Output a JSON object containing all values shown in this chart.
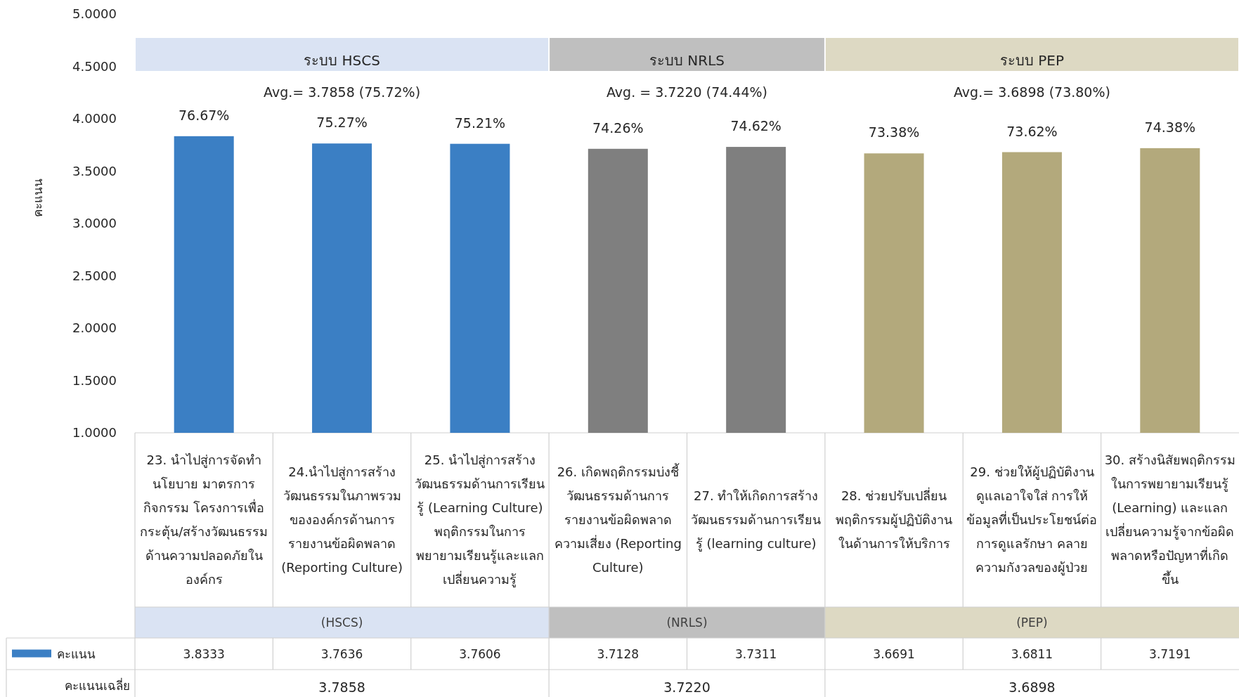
{
  "chart_data": {
    "type": "bar",
    "ylabel": "คะแนน",
    "categories": [
      "23. นำไปสู่การจัดทำนโยบาย มาตรการ กิจกรรม โครงการเพื่อกระตุ้น/สร้างวัฒนธรรมด้านความปลอดภัยในองค์กร",
      "24.นำไปสู่การสร้างวัฒนธรรมในภาพรวมขององค์กรด้านการรายงานข้อผิดพลาด (Reporting Culture)",
      "25. นำไปสู่การสร้างวัฒนธรรมด้านการเรียนรู้ (Learning Culture) พฤติกรรมในการพยายามเรียนรู้และแลกเปลี่ยนความรู้",
      "26. เกิดพฤติกรรมบ่งชี้วัฒนธรรมด้านการรายงานข้อผิดพลาด ความเสี่ยง (Reporting Culture)",
      "27. ทำให้เกิดการสร้างวัฒนธรรมด้านการเรียนรู้ (learning culture)",
      "28. ช่วยปรับเปลี่ยนพฤติกรรมผู้ปฏิบัติงานในด้านการให้บริการ",
      "29. ช่วยให้ผู้ปฏิบัติงานดูแลเอาใจใส่ การให้ข้อมูลที่เป็นประโยชน์ต่อการดูแลรักษา คลายความกังวลของผู้ป่วย",
      "30. สร้างนิสัยพฤติกรรมในการพยายามเรียนรู้ (Learning) และแลกเปลี่ยนความรู้จากข้อผิดพลาดหรือปัญหาที่เกิดขึ้น"
    ],
    "series": [
      {
        "name": "คะแนน",
        "color": "#3b7fc4",
        "colors": [
          "#3b7fc4",
          "#3b7fc4",
          "#3b7fc4",
          "#7f7f7f",
          "#7f7f7f",
          "#b3a97c",
          "#b3a97c",
          "#b3a97c"
        ],
        "values": [
          3.8333,
          3.7636,
          3.7606,
          3.7128,
          3.7311,
          3.6691,
          3.6811,
          3.7191
        ]
      }
    ],
    "ylim": [
      1,
      5
    ],
    "yticks": [
      {
        "value": 1,
        "label": "1.0000"
      },
      {
        "value": 1.5,
        "label": "1.5000"
      },
      {
        "value": 2,
        "label": "2.0000"
      },
      {
        "value": 2.5,
        "label": "2.5000"
      },
      {
        "value": 3,
        "label": "3.0000"
      },
      {
        "value": 3.5,
        "label": "3.5000"
      },
      {
        "value": 4,
        "label": "4.0000"
      },
      {
        "value": 4.5,
        "label": "4.5000"
      },
      {
        "value": 5,
        "label": "5.0000"
      }
    ],
    "data_labels": true,
    "legend": "bottom left",
    "bands": [
      {
        "axis": "x",
        "from": "23. นำไปสู่การจัดทำนโยบาย มาตรการ กิจกรรม โครงการเพื่อกระตุ้น/สร้างวัฒนธรรมด้านความปลอดภัยในองค์กร",
        "to": "25. นำไปสู่การสร้างวัฒนธรรมด้านการเรียนรู้ (Learning Culture) พฤติกรรมในการพยายามเรียนรู้และแลกเปลี่ยนความรู้",
        "label": "ระบบ HSCS",
        "color": "#dae3f3"
      },
      {
        "axis": "x",
        "from": "26. เกิดพฤติกรรมบ่งชี้วัฒนธรรมด้านการรายงานข้อผิดพลาด ความเสี่ยง (Reporting Culture)",
        "to": "27. ทำให้เกิดการสร้างวัฒนธรรมด้านการเรียนรู้ (learning culture)",
        "label": "ระบบ NRLS",
        "color": "#bfbfbf"
      },
      {
        "axis": "x",
        "from": "28. ช่วยปรับเปลี่ยนพฤติกรรมผู้ปฏิบัติงานในด้านการให้บริการ",
        "to": "30. สร้างนิสัยพฤติกรรมในการพยายามเรียนรู้ (Learning) และแลกเปลี่ยนความรู้จากข้อผิดพลาดหรือปัญหาที่เกิดขึ้น",
        "label": "ระบบ PEP",
        "color": "#ddd9c3"
      }
    ],
    "annotations": [
      "Avg.= 3.7858 (75.72%)",
      "Avg. = 3.7220 (74.44%)",
      "Avg.= 3.6898 (73.80%)",
      "(HSCS)",
      "(NRLS)",
      "(PEP)",
      "คะแนนเฉลี่ย",
      "3.7858",
      "3.7220",
      "3.6898",
      {
        "text": "76.67%",
        "x": "23. นำไปสู่การจัดทำนโยบาย มาตรการ กิจกรรม โครงการเพื่อกระตุ้น/สร้างวัฒนธรรมด้านความปลอดภัยในองค์กร",
        "y": 3.8333
      },
      {
        "text": "75.27%",
        "x": "24.นำไปสู่การสร้างวัฒนธรรมในภาพรวมขององค์กรด้านการรายงานข้อผิดพลาด (Reporting Culture)",
        "y": 3.7636
      },
      {
        "text": "75.21%",
        "x": "25. นำไปสู่การสร้างวัฒนธรรมด้านการเรียนรู้ (Learning Culture) พฤติกรรมในการพยายามเรียนรู้และแลกเปลี่ยนความรู้",
        "y": 3.7606
      },
      {
        "text": "74.26%",
        "x": "26. เกิดพฤติกรรมบ่งชี้วัฒนธรรมด้านการรายงานข้อผิดพลาด ความเสี่ยง (Reporting Culture)",
        "y": 3.7128
      },
      {
        "text": "74.62%",
        "x": "27. ทำให้เกิดการสร้างวัฒนธรรมด้านการเรียนรู้ (learning culture)",
        "y": 3.7311
      },
      {
        "text": "73.38%",
        "x": "28. ช่วยปรับเปลี่ยนพฤติกรรมผู้ปฏิบัติงานในด้านการให้บริการ",
        "y": 3.6691
      },
      {
        "text": "73.62%",
        "x": "29. ช่วยให้ผู้ปฏิบัติงานดูแลเอาใจใส่ การให้ข้อมูลที่เป็นประโยชน์ต่อการดูแลรักษา คลายความกังวลของผู้ป่วย",
        "y": 3.6811
      },
      {
        "text": "74.38%",
        "x": "30. สร้างนิสัยพฤติกรรมในการพยายามเรียนรู้ (Learning) และแลกเปลี่ยนความรู้จากข้อผิดพลาดหรือปัญหาที่เกิดขึ้น",
        "y": 3.7191
      }
    ]
  }
}
